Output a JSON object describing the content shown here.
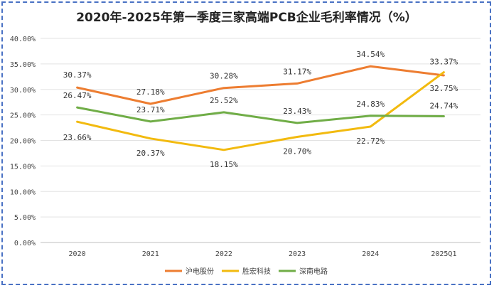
{
  "chart_data": {
    "type": "line",
    "title": "2020年-2025年第一季度三家高端PCB企业毛利率情况（%）",
    "categories": [
      "2020",
      "2021",
      "2022",
      "2023",
      "2024",
      "2025Q1"
    ],
    "ylim": [
      0,
      40
    ],
    "yticks": [
      "0.00%",
      "5.00%",
      "10.00%",
      "15.00%",
      "20.00%",
      "25.00%",
      "30.00%",
      "35.00%",
      "40.00%"
    ],
    "grid": true,
    "legend_position": "bottom",
    "series": [
      {
        "name": "沪电股份",
        "color": "#ED7D31",
        "values": [
          30.37,
          27.18,
          30.28,
          31.17,
          34.54,
          32.75
        ],
        "labels": [
          "30.37%",
          "27.18%",
          "30.28%",
          "31.17%",
          "34.54%",
          "32.75%"
        ]
      },
      {
        "name": "胜宏科技",
        "color": "#F2BA0F",
        "values": [
          23.66,
          20.37,
          18.15,
          20.7,
          22.72,
          33.37
        ],
        "labels": [
          "23.66%",
          "20.37%",
          "18.15%",
          "20.70%",
          "22.72%",
          "33.37%"
        ]
      },
      {
        "name": "深南电路",
        "color": "#70AD47",
        "values": [
          26.47,
          23.71,
          25.52,
          23.43,
          24.83,
          24.74
        ],
        "labels": [
          "26.47%",
          "23.71%",
          "25.52%",
          "23.43%",
          "24.83%",
          "24.74%"
        ]
      }
    ]
  }
}
